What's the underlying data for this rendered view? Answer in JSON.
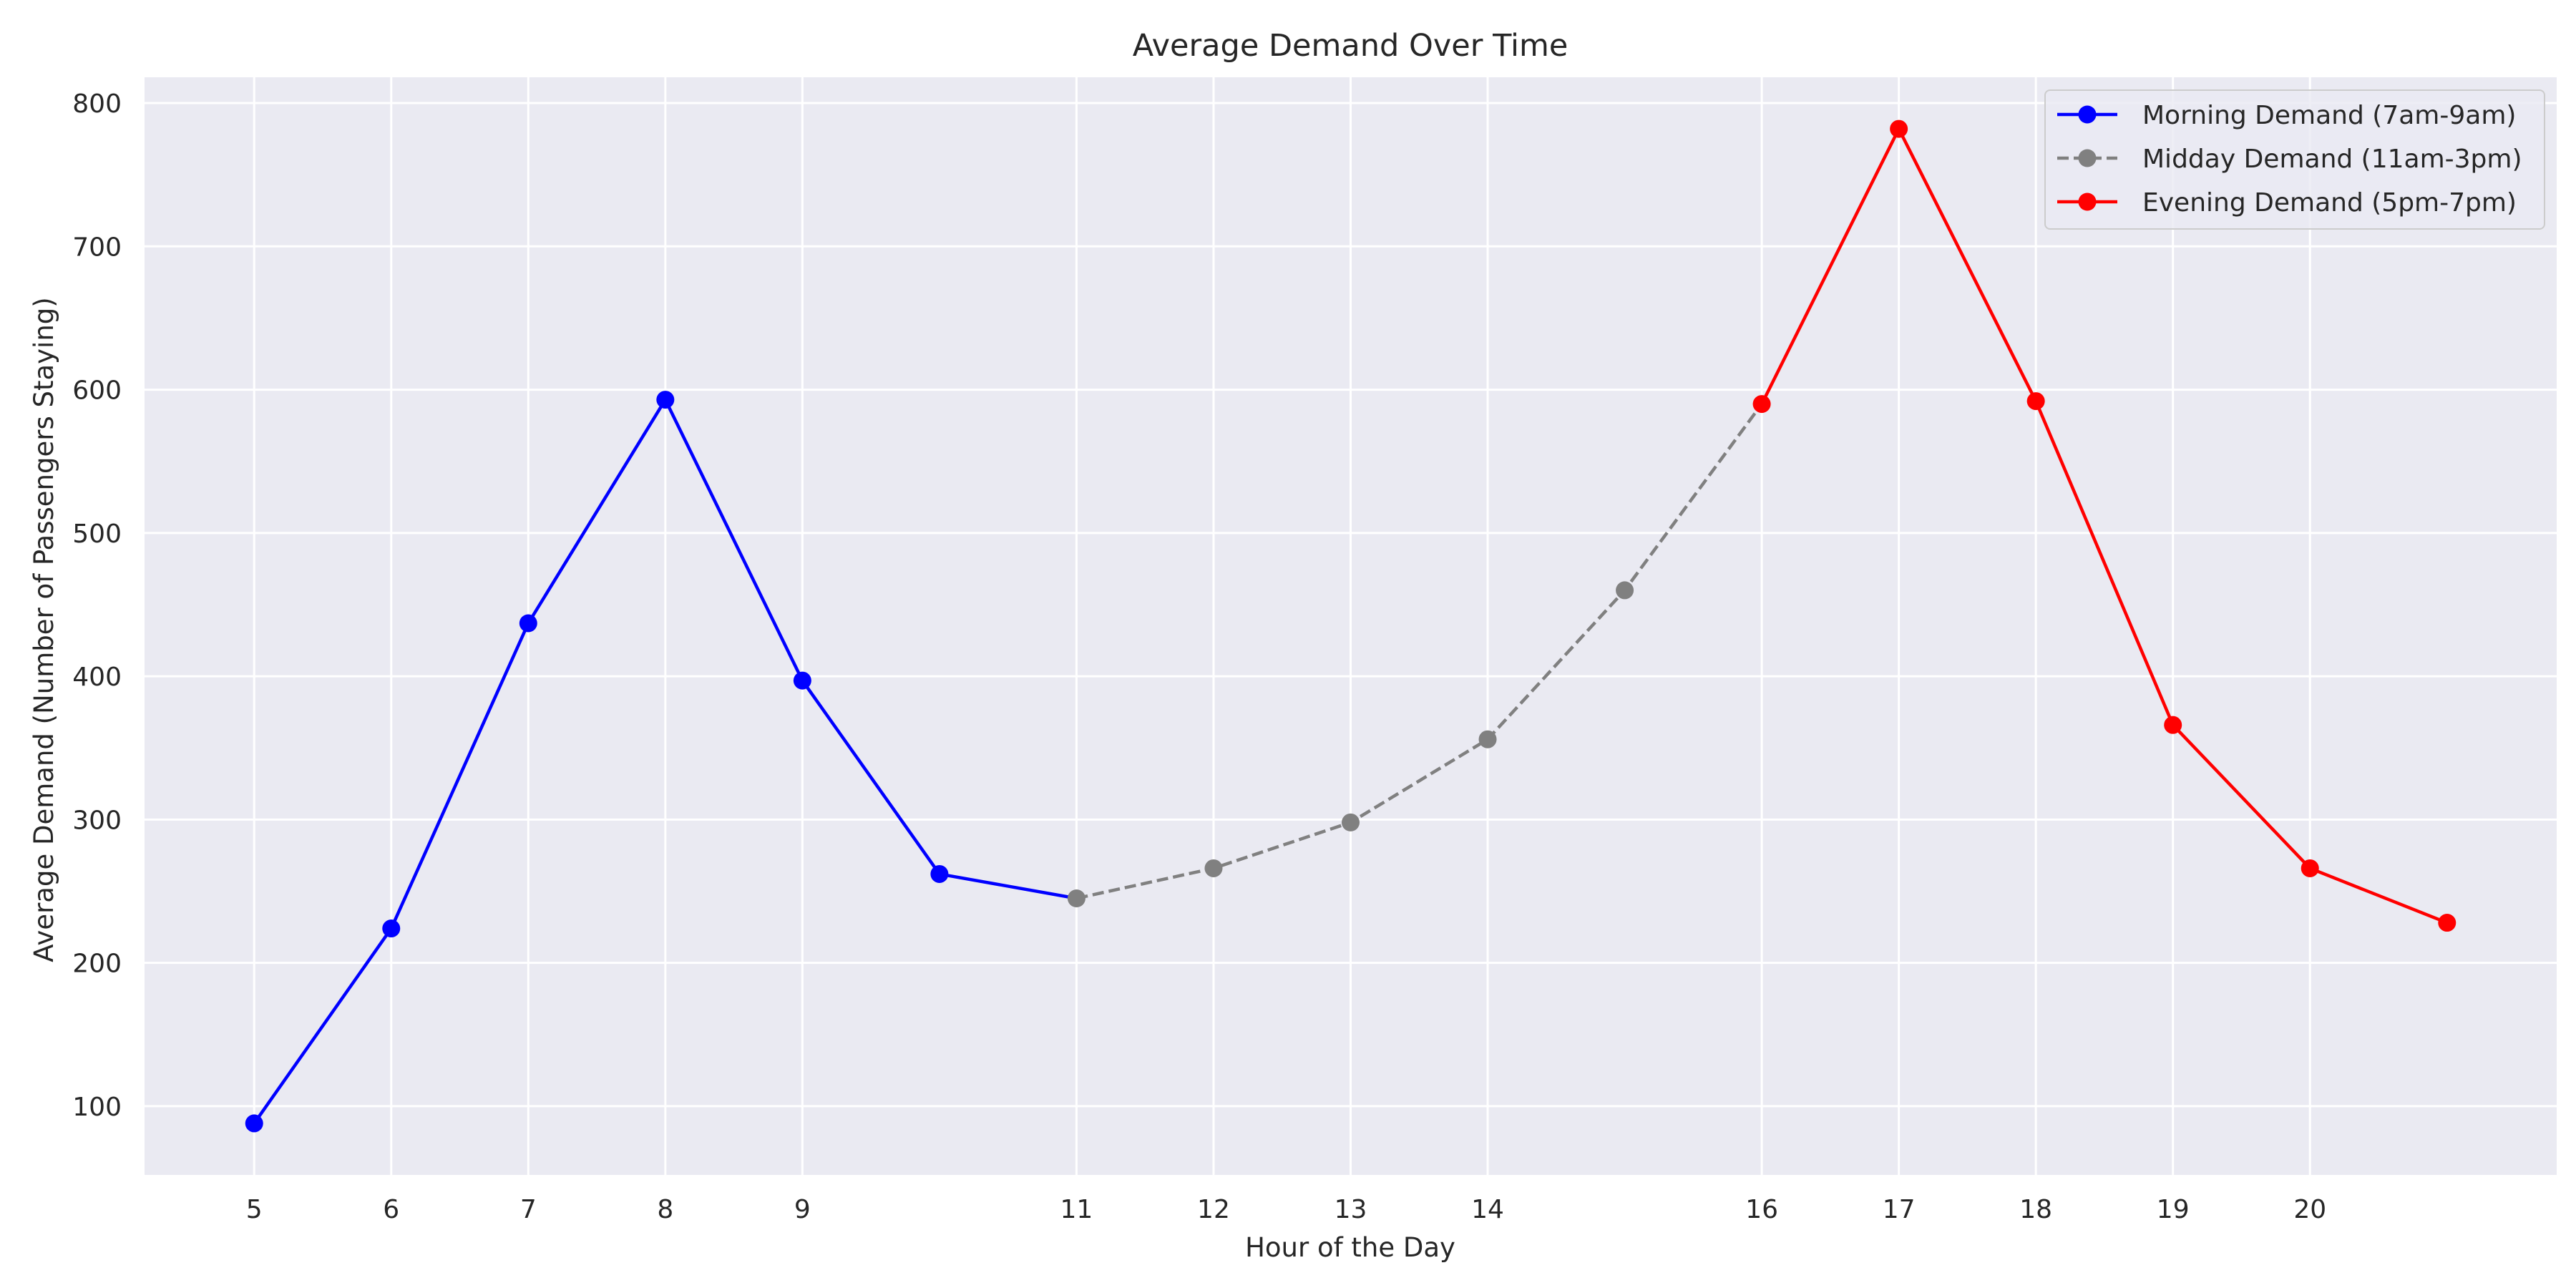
{
  "chart_data": {
    "type": "line",
    "title": "Average Demand Over Time",
    "xlabel": "Hour of the Day",
    "ylabel": "Average Demand (Number of Passengers Staying)",
    "xlim": [
      4.2,
      21.8
    ],
    "ylim": [
      52,
      818
    ],
    "x_ticks": [
      5,
      6,
      7,
      8,
      9,
      11,
      12,
      13,
      14,
      16,
      17,
      18,
      19,
      20
    ],
    "y_ticks": [
      100,
      200,
      300,
      400,
      500,
      600,
      700,
      800
    ],
    "grid": true,
    "legend_position": "top-right",
    "series": [
      {
        "name": "Morning Demand (7am-9am)",
        "color": "#0000ff",
        "line_style": "solid",
        "marker": "circle",
        "x": [
          5,
          6,
          7,
          8,
          9,
          10,
          11
        ],
        "y": [
          88,
          224,
          437,
          593,
          397,
          262,
          245
        ],
        "marker_x": [
          5,
          6,
          7,
          8,
          9,
          10
        ]
      },
      {
        "name": "Midday Demand (11am-3pm)",
        "color": "#808080",
        "line_style": "dashed",
        "marker": "circle",
        "x": [
          11,
          12,
          13,
          14,
          15,
          16
        ],
        "y": [
          245,
          266,
          298,
          356,
          460,
          590
        ],
        "marker_x": [
          11,
          12,
          13,
          14,
          15
        ]
      },
      {
        "name": "Evening Demand (5pm-7pm)",
        "color": "#ff0000",
        "line_style": "solid",
        "marker": "circle",
        "x": [
          16,
          17,
          18,
          19,
          20,
          21
        ],
        "y": [
          590,
          782,
          592,
          366,
          266,
          228
        ],
        "marker_x": [
          16,
          17,
          18,
          19,
          20,
          21
        ]
      }
    ]
  }
}
